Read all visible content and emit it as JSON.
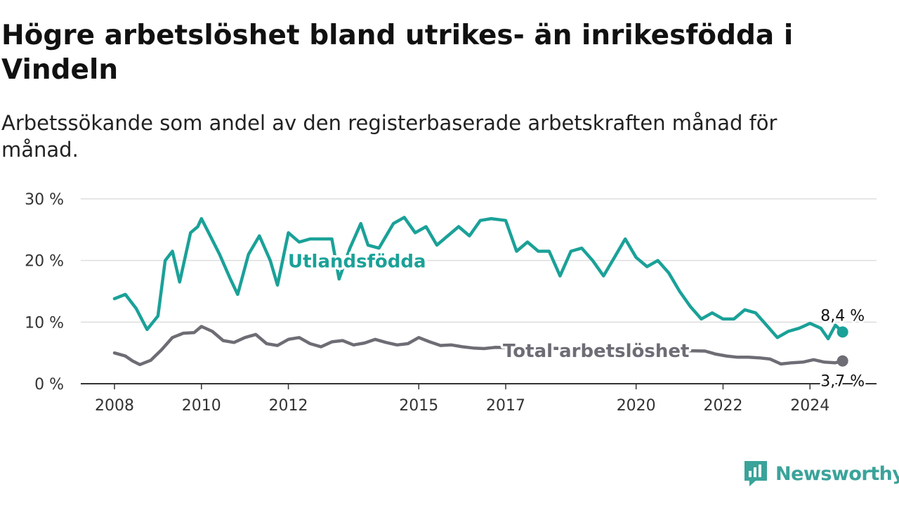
{
  "header": {
    "title": "Högre arbetslöshet bland utrikes- än inrikesfödda i Vindeln",
    "subtitle": "Arbetssökande som andel av den registerbaserade arbetskraften månad för månad."
  },
  "brand": {
    "name": "Newsworthy",
    "color": "#3aa39a",
    "icon": "newsworthy-logo-icon"
  },
  "colors": {
    "utlandsfodda": "#1aa198",
    "total": "#6e6c74",
    "grid": "#dddddd",
    "axis": "#333333"
  },
  "chart_data": {
    "type": "line",
    "title": "Högre arbetslöshet bland utrikes- än inrikesfödda i Vindeln",
    "subtitle": "Arbetssökande som andel av den registerbaserade arbetskraften månad för månad.",
    "xlabel": "",
    "ylabel": "",
    "x_range": [
      "2008-01",
      "2024-12"
    ],
    "x_ticks": [
      "2008",
      "2010",
      "2012",
      "2015",
      "2017",
      "2020",
      "2022",
      "2024"
    ],
    "y_ticks": [
      {
        "value": 0,
        "label": "0 %"
      },
      {
        "value": 10,
        "label": "10 %"
      },
      {
        "value": 20,
        "label": "20 %"
      },
      {
        "value": 30,
        "label": "30 %"
      }
    ],
    "ylim": [
      0,
      30
    ],
    "grid": true,
    "legend": "inline labels",
    "series": [
      {
        "name": "Utlandsfödda",
        "color": "#1aa198",
        "label": "Utlandsfödda",
        "end_label": "8,4 %",
        "points": [
          [
            "2008-01",
            13.8
          ],
          [
            "2008-04",
            14.5
          ],
          [
            "2008-07",
            12.2
          ],
          [
            "2008-10",
            8.8
          ],
          [
            "2009-01",
            11.0
          ],
          [
            "2009-03",
            20.0
          ],
          [
            "2009-05",
            21.5
          ],
          [
            "2009-07",
            16.5
          ],
          [
            "2009-10",
            24.5
          ],
          [
            "2009-12",
            25.5
          ],
          [
            "2010-01",
            26.8
          ],
          [
            "2010-03",
            24.5
          ],
          [
            "2010-06",
            21.0
          ],
          [
            "2010-09",
            17.0
          ],
          [
            "2010-11",
            14.5
          ],
          [
            "2011-02",
            21.0
          ],
          [
            "2011-05",
            24.0
          ],
          [
            "2011-08",
            20.0
          ],
          [
            "2011-10",
            16.0
          ],
          [
            "2012-01",
            24.5
          ],
          [
            "2012-04",
            23.0
          ],
          [
            "2012-07",
            23.5
          ],
          [
            "2013-01",
            23.5
          ],
          [
            "2013-03",
            17.0
          ],
          [
            "2013-06",
            22.0
          ],
          [
            "2013-09",
            26.0
          ],
          [
            "2013-11",
            22.5
          ],
          [
            "2014-02",
            22.0
          ],
          [
            "2014-06",
            26.0
          ],
          [
            "2014-09",
            27.0
          ],
          [
            "2014-12",
            24.5
          ],
          [
            "2015-03",
            25.5
          ],
          [
            "2015-06",
            22.5
          ],
          [
            "2015-09",
            24.0
          ],
          [
            "2015-12",
            25.5
          ],
          [
            "2016-03",
            24.0
          ],
          [
            "2016-06",
            26.5
          ],
          [
            "2016-09",
            26.8
          ],
          [
            "2017-01",
            26.5
          ],
          [
            "2017-04",
            21.5
          ],
          [
            "2017-07",
            23.0
          ],
          [
            "2017-10",
            21.5
          ],
          [
            "2018-01",
            21.5
          ],
          [
            "2018-04",
            17.5
          ],
          [
            "2018-07",
            21.5
          ],
          [
            "2018-10",
            22.0
          ],
          [
            "2019-01",
            20.0
          ],
          [
            "2019-04",
            17.5
          ],
          [
            "2019-07",
            20.5
          ],
          [
            "2019-10",
            23.5
          ],
          [
            "2020-01",
            20.5
          ],
          [
            "2020-04",
            19.0
          ],
          [
            "2020-07",
            20.0
          ],
          [
            "2020-10",
            18.0
          ],
          [
            "2021-01",
            15.0
          ],
          [
            "2021-04",
            12.5
          ],
          [
            "2021-07",
            10.5
          ],
          [
            "2021-10",
            11.5
          ],
          [
            "2022-01",
            10.5
          ],
          [
            "2022-04",
            10.5
          ],
          [
            "2022-07",
            12.0
          ],
          [
            "2022-10",
            11.5
          ],
          [
            "2023-01",
            9.5
          ],
          [
            "2023-04",
            7.5
          ],
          [
            "2023-07",
            8.5
          ],
          [
            "2023-10",
            9.0
          ],
          [
            "2024-01",
            9.8
          ],
          [
            "2024-04",
            9.0
          ],
          [
            "2024-06",
            7.3
          ],
          [
            "2024-08",
            9.5
          ],
          [
            "2024-10",
            8.4
          ]
        ]
      },
      {
        "name": "Total arbetslöshet",
        "color": "#6e6c74",
        "label": "Total arbetslöshet",
        "end_label": "3,7 %",
        "points": [
          [
            "2008-01",
            5.0
          ],
          [
            "2008-04",
            4.5
          ],
          [
            "2008-06",
            3.7
          ],
          [
            "2008-08",
            3.1
          ],
          [
            "2008-11",
            3.8
          ],
          [
            "2009-02",
            5.5
          ],
          [
            "2009-05",
            7.5
          ],
          [
            "2009-08",
            8.2
          ],
          [
            "2009-11",
            8.3
          ],
          [
            "2010-01",
            9.3
          ],
          [
            "2010-04",
            8.5
          ],
          [
            "2010-07",
            7.0
          ],
          [
            "2010-10",
            6.7
          ],
          [
            "2011-01",
            7.5
          ],
          [
            "2011-04",
            8.0
          ],
          [
            "2011-07",
            6.5
          ],
          [
            "2011-10",
            6.2
          ],
          [
            "2012-01",
            7.2
          ],
          [
            "2012-04",
            7.5
          ],
          [
            "2012-07",
            6.5
          ],
          [
            "2012-10",
            6.0
          ],
          [
            "2013-01",
            6.8
          ],
          [
            "2013-04",
            7.0
          ],
          [
            "2013-07",
            6.3
          ],
          [
            "2013-10",
            6.6
          ],
          [
            "2014-01",
            7.2
          ],
          [
            "2014-04",
            6.7
          ],
          [
            "2014-07",
            6.3
          ],
          [
            "2014-10",
            6.5
          ],
          [
            "2015-01",
            7.5
          ],
          [
            "2015-04",
            6.8
          ],
          [
            "2015-07",
            6.2
          ],
          [
            "2015-10",
            6.3
          ],
          [
            "2016-01",
            6.0
          ],
          [
            "2016-04",
            5.8
          ],
          [
            "2016-07",
            5.7
          ],
          [
            "2016-10",
            5.9
          ],
          [
            "2021-08",
            5.3
          ],
          [
            "2021-11",
            4.8
          ],
          [
            "2022-02",
            4.5
          ],
          [
            "2022-05",
            4.3
          ],
          [
            "2022-08",
            4.3
          ],
          [
            "2022-11",
            4.2
          ],
          [
            "2023-02",
            4.0
          ],
          [
            "2023-05",
            3.2
          ],
          [
            "2023-08",
            3.4
          ],
          [
            "2023-11",
            3.5
          ],
          [
            "2024-02",
            3.9
          ],
          [
            "2024-05",
            3.5
          ],
          [
            "2024-08",
            3.4
          ],
          [
            "2024-10",
            3.7
          ]
        ]
      }
    ]
  }
}
